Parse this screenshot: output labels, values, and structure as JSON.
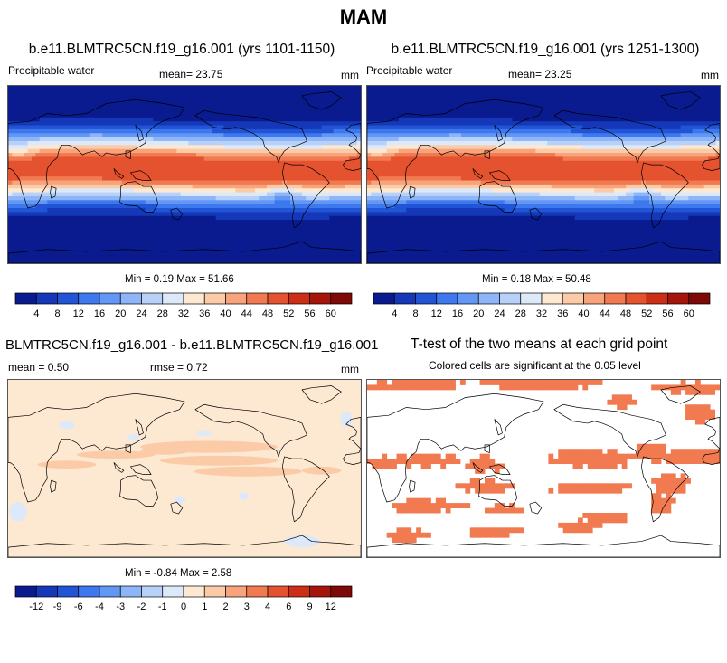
{
  "title": "MAM",
  "panels": [
    {
      "id": "case1",
      "title": "b.e11.BLMTRC5CN.f19_g16.001 (yrs 1101-1150)",
      "variable": "Precipitable water",
      "mean_text": "mean=  23.75",
      "units": "mm",
      "minmax_text": "Min =   0.19 Max =  51.66"
    },
    {
      "id": "case2",
      "title": "b.e11.BLMTRC5CN.f19_g16.001 (yrs 1251-1300)",
      "variable": "Precipitable water",
      "mean_text": "mean=  23.25",
      "units": "mm",
      "minmax_text": "Min =   0.18 Max =  50.48"
    },
    {
      "id": "diff",
      "title": "BLMTRC5CN.f19_g16.001 - b.e11.BLMTRC5CN.f19_g16.001",
      "mean_text": "mean =   0.50",
      "rmse_text": "rmse =   0.72",
      "units": "mm",
      "minmax_text": "Min =  -0.84 Max =   2.58"
    },
    {
      "id": "ttest",
      "title": "T-test of the two means at each grid point",
      "subtitle": "Colored cells are significant at the 0.05 level"
    }
  ],
  "colorbars": {
    "pw": {
      "labels": [
        "4",
        "8",
        "12",
        "16",
        "20",
        "24",
        "28",
        "32",
        "36",
        "40",
        "44",
        "48",
        "52",
        "56",
        "60"
      ],
      "colors": [
        "#0a1a8f",
        "#1438b8",
        "#2155d6",
        "#3d78ee",
        "#6397f5",
        "#8db5f8",
        "#b7d1f8",
        "#dde9f8",
        "#fde8d2",
        "#fbcaa6",
        "#f7a47c",
        "#f17a50",
        "#e5522f",
        "#cc2f15",
        "#a5150a",
        "#7d0a06"
      ]
    },
    "diff": {
      "labels": [
        "-12",
        "-9",
        "-6",
        "-4",
        "-3",
        "-2",
        "-1",
        "0",
        "1",
        "2",
        "3",
        "4",
        "6",
        "9",
        "12"
      ],
      "colors": [
        "#0a1a8f",
        "#1438b8",
        "#2155d6",
        "#3d78ee",
        "#6397f5",
        "#8db5f8",
        "#b7d1f8",
        "#dde9f8",
        "#fde8d2",
        "#fbcaa6",
        "#f7a47c",
        "#f17a50",
        "#e5522f",
        "#cc2f15",
        "#a5150a",
        "#7d0a06"
      ]
    }
  },
  "map_colors": {
    "pw_bands": [
      "#0a1a8f",
      "#1438b8",
      "#2155d6",
      "#3d78ee",
      "#6397f5",
      "#8db5f8",
      "#b7d1f8",
      "#dde9f8",
      "#fde8d2",
      "#fbcaa6",
      "#f7a47c",
      "#f17a50",
      "#e5522f"
    ],
    "diff_background": "#fde8d2",
    "diff_positive": "#fbcaa6",
    "diff_negative": "#dde9f8",
    "ttest_significant": "#f17a50",
    "coastline": "#000000"
  }
}
